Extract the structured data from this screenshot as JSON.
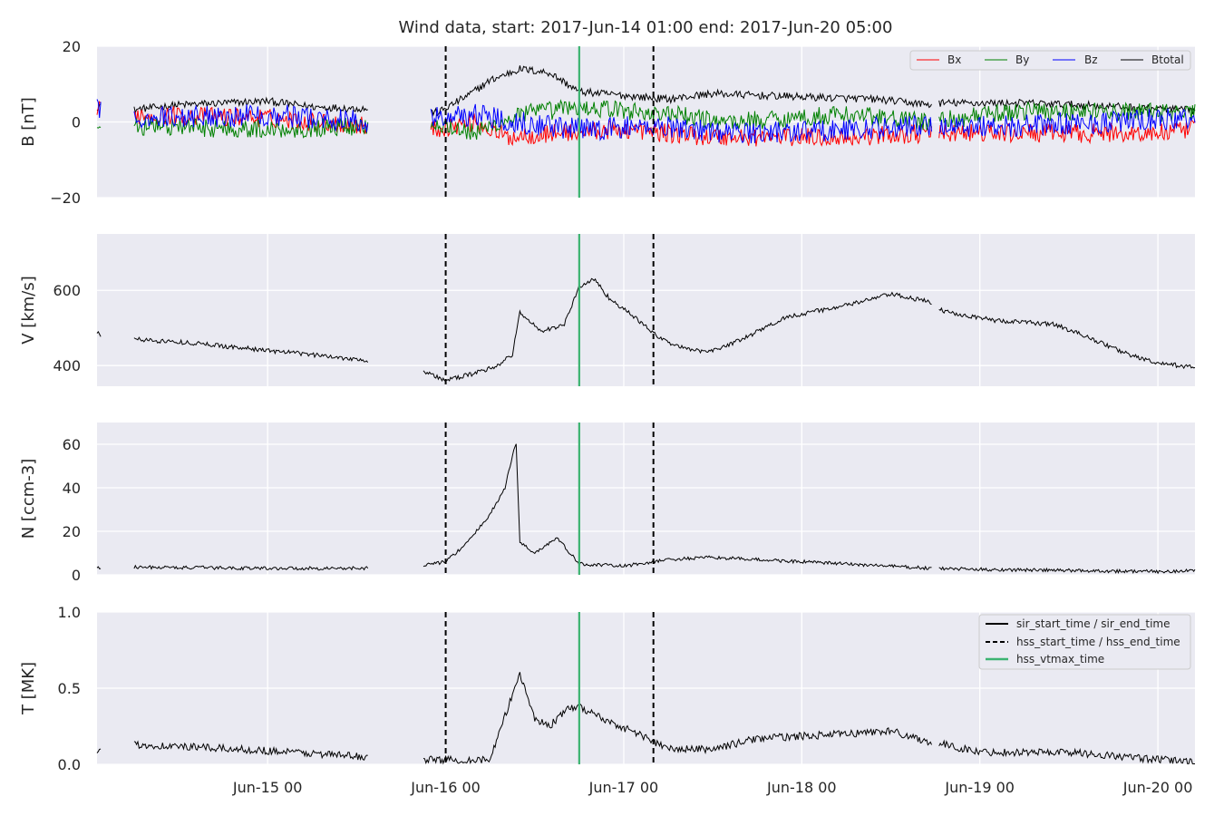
{
  "title": "Wind data, start: 2017-Jun-14 01:00  end: 2017-Jun-20 05:00",
  "x_axis": {
    "start": "2017-06-14T01:00",
    "end": "2017-06-20T05:00",
    "tick_labels": [
      "Jun-15 00",
      "Jun-16 00",
      "Jun-17 00",
      "Jun-18 00",
      "Jun-19 00",
      "Jun-20 00"
    ],
    "tick_times": [
      "2017-06-15T00:00",
      "2017-06-16T00:00",
      "2017-06-17T00:00",
      "2017-06-18T00:00",
      "2017-06-19T00:00",
      "2017-06-20T00:00"
    ]
  },
  "colors": {
    "background": "#eaeaf2",
    "grid": "#ffffff",
    "bx": "#ff0000",
    "by": "#008000",
    "bz": "#0000ff",
    "btotal": "#000000",
    "vtmax": "#3cb371",
    "line": "#000000"
  },
  "chart_data": {
    "type": "line",
    "events": {
      "hss_start_time": "2017-06-16T00:00",
      "hss_vtmax_time": "2017-06-16T18:00",
      "hss_end_time": "2017-06-17T04:00"
    },
    "legend_events": {
      "placement": "top-right of T panel",
      "entries": [
        "sir_start_time / sir_end_time",
        "hss_start_time / hss_end_time",
        "hss_vtmax_time"
      ]
    },
    "panels": [
      {
        "id": "B",
        "ylabel": "B [nT]",
        "ylim": [
          -20,
          20
        ],
        "yticks": [
          -20,
          0,
          20
        ],
        "ytick_labels": [
          "−20",
          "0",
          "20"
        ],
        "grid": true,
        "legend": {
          "placement": "top-right",
          "entries": [
            "Bx",
            "By",
            "Bz",
            "Btotal"
          ]
        },
        "series": [
          {
            "name": "Btotal",
            "color": "#000000",
            "base": [
              [
                "2017-06-14T01:00",
                4
              ],
              [
                "2017-06-14T01:20",
                4.5
              ],
              [
                "2017-06-14T05:00",
                3
              ],
              [
                "2017-06-14T12:00",
                4.5
              ],
              [
                "2017-06-15T00:00",
                5.5
              ],
              [
                "2017-06-15T06:00",
                4
              ],
              [
                "2017-06-15T13:00",
                3.5
              ],
              [
                "2017-06-15T19:00",
                3
              ],
              [
                "2017-06-15T23:00",
                2.5
              ],
              [
                "2017-06-16T03:00",
                7
              ],
              [
                "2017-06-16T06:00",
                11
              ],
              [
                "2017-06-16T10:00",
                14
              ],
              [
                "2017-06-16T14:00",
                13
              ],
              [
                "2017-06-16T18:00",
                8
              ],
              [
                "2017-06-17T00:00",
                7
              ],
              [
                "2017-06-17T06:00",
                6
              ],
              [
                "2017-06-17T12:00",
                7.5
              ],
              [
                "2017-06-17T18:00",
                7
              ],
              [
                "2017-06-18T02:00",
                6.5
              ],
              [
                "2017-06-18T10:00",
                6
              ],
              [
                "2017-06-18T17:30",
                4.5
              ],
              [
                "2017-06-18T18:30",
                5
              ],
              [
                "2017-06-19T06:00",
                5
              ],
              [
                "2017-06-19T14:00",
                4.5
              ],
              [
                "2017-06-20T00:00",
                3.5
              ],
              [
                "2017-06-20T05:00",
                3
              ]
            ],
            "gaps": [
              [
                "2017-06-14T01:30",
                "2017-06-14T06:00"
              ],
              [
                "2017-06-15T13:30",
                "2017-06-15T22:00"
              ],
              [
                "2017-06-18T17:30",
                "2017-06-18T18:30"
              ]
            ]
          },
          {
            "name": "Bx",
            "color": "#ff0000",
            "base": [
              [
                "2017-06-14T01:00",
                3
              ],
              [
                "2017-06-14T06:00",
                2
              ],
              [
                "2017-06-15T00:00",
                1
              ],
              [
                "2017-06-15T13:00",
                -1
              ],
              [
                "2017-06-15T22:00",
                -2
              ],
              [
                "2017-06-16T04:00",
                0
              ],
              [
                "2017-06-16T08:00",
                -4
              ],
              [
                "2017-06-16T14:00",
                -3
              ],
              [
                "2017-06-17T00:00",
                -2
              ],
              [
                "2017-06-17T12:00",
                -4
              ],
              [
                "2017-06-18T06:00",
                -4
              ],
              [
                "2017-06-18T17:00",
                -3
              ],
              [
                "2017-06-19T06:00",
                -3
              ],
              [
                "2017-06-20T00:00",
                -3
              ],
              [
                "2017-06-20T05:00",
                -2
              ]
            ],
            "gaps": [
              [
                "2017-06-14T01:30",
                "2017-06-14T06:00"
              ],
              [
                "2017-06-15T13:30",
                "2017-06-15T22:00"
              ],
              [
                "2017-06-18T17:30",
                "2017-06-18T18:30"
              ]
            ]
          },
          {
            "name": "By",
            "color": "#008000",
            "base": [
              [
                "2017-06-14T01:00",
                -1
              ],
              [
                "2017-06-14T06:00",
                -1
              ],
              [
                "2017-06-15T00:00",
                -2
              ],
              [
                "2017-06-15T13:00",
                -1
              ],
              [
                "2017-06-15T22:00",
                0
              ],
              [
                "2017-06-16T04:00",
                -3
              ],
              [
                "2017-06-16T10:00",
                2
              ],
              [
                "2017-06-16T18:00",
                4
              ],
              [
                "2017-06-17T06:00",
                2
              ],
              [
                "2017-06-17T14:00",
                0
              ],
              [
                "2017-06-18T06:00",
                2
              ],
              [
                "2017-06-18T17:00",
                0
              ],
              [
                "2017-06-19T06:00",
                3
              ],
              [
                "2017-06-20T00:00",
                2.5
              ],
              [
                "2017-06-20T05:00",
                2.5
              ]
            ],
            "gaps": [
              [
                "2017-06-14T01:30",
                "2017-06-14T06:00"
              ],
              [
                "2017-06-15T13:30",
                "2017-06-15T22:00"
              ],
              [
                "2017-06-18T17:30",
                "2017-06-18T18:30"
              ]
            ]
          },
          {
            "name": "Bz",
            "color": "#0000ff",
            "base": [
              [
                "2017-06-14T01:00",
                3
              ],
              [
                "2017-06-14T06:00",
                1
              ],
              [
                "2017-06-15T00:00",
                2
              ],
              [
                "2017-06-15T13:00",
                0
              ],
              [
                "2017-06-15T22:00",
                1
              ],
              [
                "2017-06-16T04:00",
                2
              ],
              [
                "2017-06-16T10:00",
                0
              ],
              [
                "2017-06-16T18:00",
                -2
              ],
              [
                "2017-06-17T06:00",
                -1
              ],
              [
                "2017-06-17T14:00",
                -3
              ],
              [
                "2017-06-18T06:00",
                -2
              ],
              [
                "2017-06-18T17:00",
                -1
              ],
              [
                "2017-06-19T06:00",
                -1
              ],
              [
                "2017-06-20T00:00",
                0.5
              ],
              [
                "2017-06-20T05:00",
                1
              ]
            ],
            "gaps": [
              [
                "2017-06-14T01:30",
                "2017-06-14T06:00"
              ],
              [
                "2017-06-15T13:30",
                "2017-06-15T22:00"
              ],
              [
                "2017-06-18T17:30",
                "2017-06-18T18:30"
              ]
            ]
          }
        ]
      },
      {
        "id": "V",
        "ylabel": "V [km/s]",
        "ylim": [
          345,
          750
        ],
        "yticks": [
          400,
          600
        ],
        "ytick_labels": [
          "400",
          "600"
        ],
        "grid": true,
        "series": [
          {
            "name": "V",
            "color": "#000000",
            "base": [
              [
                "2017-06-14T01:00",
                490
              ],
              [
                "2017-06-14T01:30",
                480
              ],
              [
                "2017-06-14T06:00",
                470
              ],
              [
                "2017-06-14T14:00",
                460
              ],
              [
                "2017-06-15T00:00",
                440
              ],
              [
                "2017-06-15T08:00",
                425
              ],
              [
                "2017-06-15T13:00",
                415
              ],
              [
                "2017-06-15T21:00",
                385
              ],
              [
                "2017-06-16T00:00",
                360
              ],
              [
                "2017-06-16T04:00",
                380
              ],
              [
                "2017-06-16T07:00",
                400
              ],
              [
                "2017-06-16T09:00",
                430
              ],
              [
                "2017-06-16T10:00",
                540
              ],
              [
                "2017-06-16T13:00",
                490
              ],
              [
                "2017-06-16T16:00",
                510
              ],
              [
                "2017-06-16T18:00",
                610
              ],
              [
                "2017-06-16T20:00",
                630
              ],
              [
                "2017-06-16T22:00",
                580
              ],
              [
                "2017-06-17T02:00",
                520
              ],
              [
                "2017-06-17T05:00",
                470
              ],
              [
                "2017-06-17T09:00",
                440
              ],
              [
                "2017-06-17T12:00",
                440
              ],
              [
                "2017-06-17T16:00",
                470
              ],
              [
                "2017-06-17T22:00",
                530
              ],
              [
                "2017-06-18T06:00",
                560
              ],
              [
                "2017-06-18T12:00",
                590
              ],
              [
                "2017-06-18T17:00",
                570
              ],
              [
                "2017-06-18T19:00",
                545
              ],
              [
                "2017-06-19T02:00",
                520
              ],
              [
                "2017-06-19T10:00",
                510
              ],
              [
                "2017-06-19T14:00",
                480
              ],
              [
                "2017-06-19T20:00",
                430
              ],
              [
                "2017-06-20T00:00",
                405
              ],
              [
                "2017-06-20T03:00",
                400
              ],
              [
                "2017-06-20T05:00",
                395
              ]
            ],
            "gaps": [
              [
                "2017-06-14T01:30",
                "2017-06-14T06:00"
              ],
              [
                "2017-06-15T13:30",
                "2017-06-15T21:00"
              ],
              [
                "2017-06-18T17:30",
                "2017-06-18T18:30"
              ]
            ]
          }
        ]
      },
      {
        "id": "N",
        "ylabel": "N [ccm-3]",
        "ylim": [
          0,
          70
        ],
        "yticks": [
          0,
          20,
          40,
          60
        ],
        "ytick_labels": [
          "0",
          "20",
          "40",
          "60"
        ],
        "grid": true,
        "series": [
          {
            "name": "N",
            "color": "#000000",
            "base": [
              [
                "2017-06-14T01:00",
                3
              ],
              [
                "2017-06-14T06:00",
                3.5
              ],
              [
                "2017-06-15T00:00",
                3
              ],
              [
                "2017-06-15T13:00",
                3
              ],
              [
                "2017-06-15T21:00",
                4.5
              ],
              [
                "2017-06-16T00:00",
                6
              ],
              [
                "2017-06-16T03:00",
                15
              ],
              [
                "2017-06-16T06:00",
                28
              ],
              [
                "2017-06-16T08:00",
                40
              ],
              [
                "2017-06-16T09:00",
                55
              ],
              [
                "2017-06-16T09:30",
                60
              ],
              [
                "2017-06-16T10:00",
                15
              ],
              [
                "2017-06-16T12:00",
                10
              ],
              [
                "2017-06-16T15:00",
                17
              ],
              [
                "2017-06-16T18:00",
                5
              ],
              [
                "2017-06-17T00:00",
                4
              ],
              [
                "2017-06-17T06:00",
                7
              ],
              [
                "2017-06-17T12:00",
                8
              ],
              [
                "2017-06-18T00:00",
                6
              ],
              [
                "2017-06-18T12:00",
                4
              ],
              [
                "2017-06-18T17:00",
                3
              ],
              [
                "2017-06-19T00:00",
                2.5
              ],
              [
                "2017-06-19T12:00",
                2
              ],
              [
                "2017-06-20T00:00",
                1.5
              ],
              [
                "2017-06-20T05:00",
                2
              ]
            ],
            "gaps": [
              [
                "2017-06-14T01:30",
                "2017-06-14T06:00"
              ],
              [
                "2017-06-15T13:30",
                "2017-06-15T21:00"
              ],
              [
                "2017-06-18T17:30",
                "2017-06-18T18:30"
              ]
            ]
          }
        ]
      },
      {
        "id": "T",
        "ylabel": "T [MK]",
        "ylim": [
          0,
          1.0
        ],
        "yticks": [
          0.0,
          0.5,
          1.0
        ],
        "ytick_labels": [
          "0.0",
          "0.5",
          "1.0"
        ],
        "grid": true,
        "series": [
          {
            "name": "T",
            "color": "#000000",
            "base": [
              [
                "2017-06-14T01:00",
                0.07
              ],
              [
                "2017-06-14T06:00",
                0.13
              ],
              [
                "2017-06-15T00:00",
                0.09
              ],
              [
                "2017-06-15T13:00",
                0.05
              ],
              [
                "2017-06-15T21:00",
                0.03
              ],
              [
                "2017-06-16T06:00",
                0.03
              ],
              [
                "2017-06-16T10:00",
                0.6
              ],
              [
                "2017-06-16T12:00",
                0.3
              ],
              [
                "2017-06-16T14:00",
                0.25
              ],
              [
                "2017-06-16T16:00",
                0.35
              ],
              [
                "2017-06-16T18:00",
                0.38
              ],
              [
                "2017-06-16T22:00",
                0.28
              ],
              [
                "2017-06-17T02:00",
                0.2
              ],
              [
                "2017-06-17T06:00",
                0.1
              ],
              [
                "2017-06-17T12:00",
                0.1
              ],
              [
                "2017-06-17T18:00",
                0.17
              ],
              [
                "2017-06-18T06:00",
                0.2
              ],
              [
                "2017-06-18T12:00",
                0.22
              ],
              [
                "2017-06-18T17:00",
                0.15
              ],
              [
                "2017-06-19T00:00",
                0.08
              ],
              [
                "2017-06-19T12:00",
                0.08
              ],
              [
                "2017-06-20T00:00",
                0.03
              ],
              [
                "2017-06-20T05:00",
                0.02
              ]
            ],
            "gaps": [
              [
                "2017-06-14T01:30",
                "2017-06-14T06:00"
              ],
              [
                "2017-06-15T13:30",
                "2017-06-15T21:00"
              ],
              [
                "2017-06-18T17:30",
                "2017-06-18T18:30"
              ]
            ]
          }
        ]
      }
    ]
  }
}
